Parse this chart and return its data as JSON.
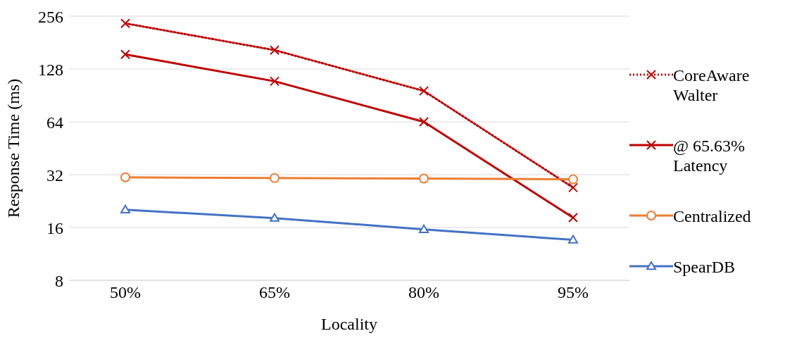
{
  "chart_data": {
    "type": "line",
    "xlabel": "Locality",
    "ylabel": "Response Time (ms)",
    "categories": [
      "50%",
      "65%",
      "80%",
      "95%"
    ],
    "series": [
      {
        "name": "CoreAware Walter",
        "color": "#c00000",
        "values": [
          233,
          164,
          96,
          27
        ],
        "marker": "cross",
        "line_style": "dotted"
      },
      {
        "name": "@ 65.63% Latency",
        "color": "#c00000",
        "values": [
          155,
          109,
          64,
          18.2
        ],
        "marker": "cross",
        "line_style": "solid"
      },
      {
        "name": "Centralized",
        "color": "#ed7d31",
        "values": [
          30.9,
          30.6,
          30.4,
          30.1
        ],
        "marker": "circle",
        "line_style": "solid"
      },
      {
        "name": "SpearDB",
        "color": "#4472c4",
        "values": [
          20.2,
          18.1,
          15.6,
          13.6
        ],
        "marker": "triangle",
        "line_style": "solid"
      }
    ],
    "log": "y",
    "ylim": [
      8,
      256
    ],
    "yticks": [
      8,
      16,
      32,
      64,
      128,
      256
    ],
    "grid": "y",
    "legend": "right"
  }
}
